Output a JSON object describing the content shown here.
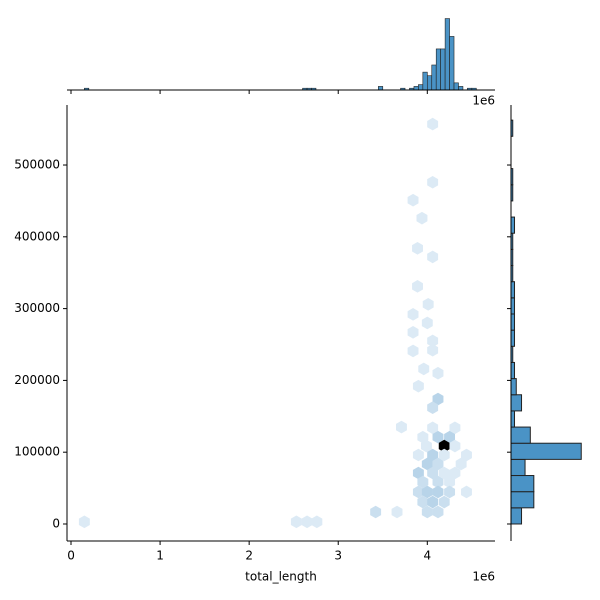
{
  "chart_data": {
    "type": "hexjoint",
    "x_label": "total_length",
    "offset_text": "1e6",
    "xlim": [
      -45000,
      4760000
    ],
    "ylim": [
      -23700,
      583600
    ],
    "xticks": [
      0,
      {
        "value": 1000000,
        "label": "1"
      },
      {
        "value": 2000000,
        "label": "2"
      },
      {
        "value": 3000000,
        "label": "3"
      },
      {
        "value": 4000000,
        "label": "4"
      }
    ],
    "yticks": [
      0,
      100000,
      200000,
      300000,
      400000,
      500000
    ],
    "hex_colors": [
      "#eef5fb",
      "#3a86bf",
      "#000000"
    ],
    "hexbins": {
      "x": [
        150000,
        2530000,
        2650000,
        2760000,
        3420000,
        3660000,
        3710000,
        4060000,
        4060000,
        3840000,
        3940000,
        3890000,
        4060000,
        3890000,
        4010000,
        3840000,
        4000000,
        3840000,
        4060000,
        3840000,
        4060000,
        3960000,
        4120000,
        3900000,
        4120000,
        4060000,
        4060000,
        4310000,
        3950000,
        4120000,
        4250000,
        3990000,
        4190000,
        4310000,
        3900000,
        4060000,
        4190000,
        4440000,
        4000000,
        4120000,
        4380000,
        3900000,
        4060000,
        4190000,
        4310000,
        3950000,
        4120000,
        4250000,
        3900000,
        4000000,
        4120000,
        4250000,
        4440000,
        3950000,
        4060000,
        4190000,
        4000000,
        4120000
      ],
      "y": [
        3000,
        3000,
        3000,
        3000,
        16700,
        16700,
        135000,
        557000,
        476000,
        451000,
        426000,
        384000,
        372000,
        331000,
        306000,
        292000,
        280000,
        267000,
        255000,
        241000,
        242000,
        216000,
        210000,
        192000,
        174000,
        162000,
        134000,
        134000,
        121000,
        121000,
        121000,
        108600,
        108600,
        108600,
        96100,
        96100,
        96100,
        96100,
        83600,
        83600,
        83600,
        71000,
        71000,
        71000,
        71000,
        58500,
        58500,
        58500,
        44600,
        44600,
        44600,
        44600,
        44600,
        30600,
        30600,
        30600,
        16700,
        16700
      ],
      "counts": [
        1,
        1,
        1,
        1,
        2,
        1,
        1,
        1,
        1,
        1,
        1,
        1,
        1,
        1,
        1,
        1,
        1,
        1,
        1,
        1,
        1,
        1,
        1,
        1,
        3,
        2,
        1,
        1,
        1,
        3,
        3,
        1,
        20,
        1,
        1,
        3,
        1,
        1,
        3,
        2,
        1,
        3,
        2,
        1,
        1,
        2,
        2,
        1,
        2,
        3,
        3,
        2,
        1,
        2,
        3,
        2,
        2,
        2
      ]
    },
    "hist_color": "#4a93c6",
    "x_hist": {
      "bins": [
        100000,
        150000,
        200000,
        250000,
        300000,
        350000,
        400000,
        450000,
        500000,
        550000,
        600000,
        650000,
        700000,
        750000,
        800000,
        850000,
        900000,
        950000,
        1000000,
        1050000,
        1100000,
        1150000,
        1200000,
        1250000,
        1300000,
        1350000,
        1400000,
        1450000,
        1500000,
        1550000,
        1600000,
        1650000,
        1700000,
        1750000,
        1800000,
        1850000,
        1900000,
        1950000,
        2000000,
        2050000,
        2100000,
        2150000,
        2200000,
        2250000,
        2300000,
        2350000,
        2400000,
        2450000,
        2500000,
        2550000,
        2600000,
        2650000,
        2700000,
        2750000,
        2800000,
        2850000,
        2900000,
        2950000,
        3000000,
        3050000,
        3100000,
        3150000,
        3200000,
        3250000,
        3300000,
        3350000,
        3400000,
        3450000,
        3500000,
        3550000,
        3600000,
        3650000,
        3700000,
        3750000,
        3800000,
        3850000,
        3900000,
        3950000,
        4000000,
        4050000,
        4100000,
        4150000,
        4200000,
        4250000,
        4300000,
        4350000,
        4400000,
        4450000,
        4500000,
        4550000,
        4600000
      ],
      "counts": [
        0,
        1,
        0,
        0,
        0,
        0,
        0,
        0,
        0,
        0,
        0,
        0,
        0,
        0,
        0,
        0,
        0,
        0,
        0,
        0,
        0,
        0,
        0,
        0,
        0,
        0,
        0,
        0,
        0,
        0,
        0,
        0,
        0,
        0,
        0,
        0,
        0,
        0,
        0,
        0,
        0,
        0,
        0,
        0,
        0,
        0,
        0,
        0,
        0,
        0,
        1,
        1,
        1,
        0,
        0,
        0,
        0,
        0,
        0,
        0,
        0,
        0,
        0,
        0,
        0,
        0,
        0,
        2,
        0,
        0,
        0,
        0,
        1,
        0,
        1,
        2,
        3,
        10,
        8,
        14,
        23,
        23,
        40,
        30,
        4,
        2,
        0,
        1,
        1,
        0
      ],
      "count_lim": [
        0,
        42
      ]
    },
    "y_hist": {
      "bins": [
        0,
        22500,
        45000,
        67500,
        90000,
        112500,
        135000,
        157500,
        180000,
        202500,
        225000,
        247500,
        270000,
        292500,
        315000,
        337500,
        360000,
        382500,
        405000,
        427500,
        450000,
        472500,
        495000,
        517500,
        540000,
        562500
      ],
      "counts": [
        6,
        13,
        13,
        8,
        40,
        11,
        2,
        6,
        3,
        2,
        1,
        2,
        2,
        2,
        2,
        1,
        1,
        1,
        2,
        0,
        1,
        1,
        0,
        0,
        1
      ],
      "count_lim": [
        0,
        41
      ]
    }
  }
}
